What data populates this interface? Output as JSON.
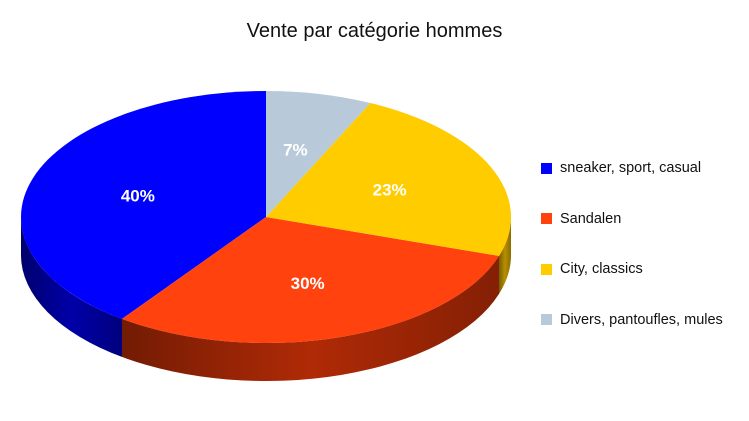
{
  "chart_data": {
    "type": "pie",
    "title": "Vente par catégorie hommes",
    "categories": [
      "sneaker, sport, casual",
      "Sandalen",
      "City, classics",
      "Divers, pantoufles, mules"
    ],
    "values": [
      40,
      30,
      23,
      7
    ],
    "data_labels": [
      "40%",
      "30%",
      "23%",
      "7%"
    ],
    "colors": [
      "#0000ff",
      "#ff420e",
      "#ffcc00",
      "#b8cad9"
    ],
    "side_colors": [
      "#0000a8",
      "#b02a06",
      "#b88f00",
      "#8a9aa8"
    ],
    "legend_position": "right",
    "style": "3d"
  }
}
